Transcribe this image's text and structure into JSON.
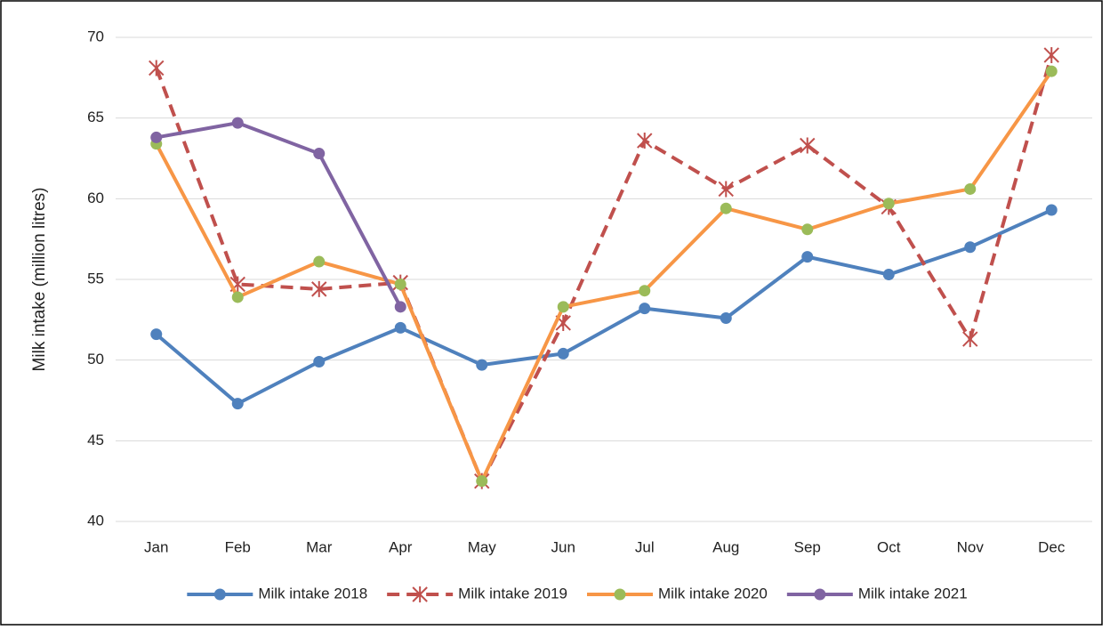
{
  "chart_data": {
    "type": "line",
    "y_label": "Milk intake (million litres)",
    "categories": [
      "Jan",
      "Feb",
      "Mar",
      "Apr",
      "May",
      "Jun",
      "Jul",
      "Aug",
      "Sep",
      "Oct",
      "Nov",
      "Dec"
    ],
    "ylim": [
      40,
      70
    ],
    "yticks": [
      40,
      45,
      50,
      55,
      60,
      65,
      70
    ],
    "grid": true,
    "legend": "bottom",
    "series": [
      {
        "name": "Milk intake 2018",
        "color": "#4f81bd",
        "marker_color": "#4f81bd",
        "marker": "circle",
        "dash": "solid",
        "values": [
          51.6,
          47.3,
          49.9,
          52.0,
          49.7,
          50.4,
          53.2,
          52.6,
          56.4,
          55.3,
          57.0,
          59.3
        ]
      },
      {
        "name": "Milk intake 2019",
        "color": "#c0504d",
        "marker_color": "#c0504d",
        "marker": "star",
        "dash": "dashed",
        "values": [
          68.1,
          54.7,
          54.4,
          54.8,
          42.5,
          52.3,
          63.6,
          60.6,
          63.3,
          59.5,
          51.3,
          68.9
        ]
      },
      {
        "name": "Milk intake 2020",
        "color": "#f79646",
        "marker_color": "#9bbb59",
        "marker": "circle",
        "dash": "solid",
        "values": [
          63.4,
          53.9,
          56.1,
          54.7,
          42.5,
          53.3,
          54.3,
          59.4,
          58.1,
          59.7,
          60.6,
          67.9
        ]
      },
      {
        "name": "Milk intake 2021",
        "color": "#8064a2",
        "marker_color": "#8064a2",
        "marker": "circle",
        "dash": "solid",
        "values": [
          63.8,
          64.7,
          62.8,
          53.3,
          null,
          null,
          null,
          null,
          null,
          null,
          null,
          null
        ]
      }
    ]
  }
}
